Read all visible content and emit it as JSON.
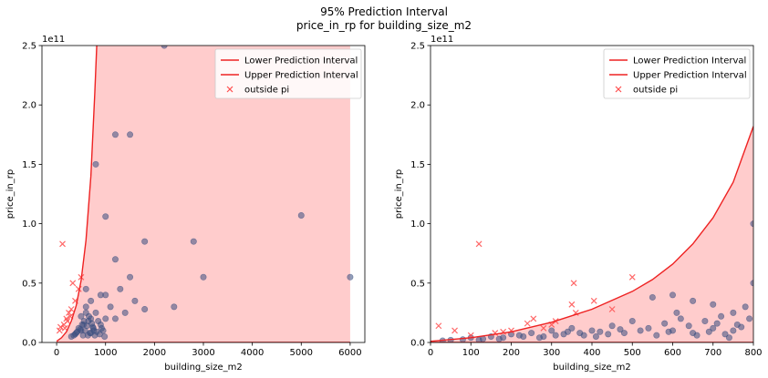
{
  "figure": {
    "title": "95% Prediction Interval",
    "subtitle": "price_in_rp for building_size_m2"
  },
  "colors": {
    "band_fill": "#ffcccc",
    "interval_line": "#ee2222",
    "outside_marker": "#ff4d4d",
    "inside_marker": "#3b4f80"
  },
  "chart_data": [
    {
      "type": "scatter",
      "xlabel": "building_size_m2",
      "ylabel": "price_in_rp",
      "y_scale_label": "1e11",
      "xlim": [
        -300,
        6300
      ],
      "ylim": [
        0,
        250000000000.0
      ],
      "x_ticks": [
        0,
        1000,
        2000,
        3000,
        4000,
        5000,
        6000
      ],
      "x_tick_labels": [
        "0",
        "1000",
        "2000",
        "3000",
        "4000",
        "5000",
        "6000"
      ],
      "y_ticks": [
        0,
        50000000000.0,
        100000000000.0,
        150000000000.0,
        200000000000.0,
        250000000000.0
      ],
      "y_tick_labels": [
        "0.0",
        "0.5",
        "1.0",
        "1.5",
        "2.0",
        "2.5"
      ],
      "grid": false,
      "legend_position": "top-right",
      "legend": [
        "Lower Prediction Interval",
        "Upper Prediction Interval",
        "outside pi"
      ],
      "band_x_range": [
        0,
        6000
      ],
      "upper_interval": {
        "x": [
          0,
          100,
          200,
          300,
          400,
          500,
          600,
          700,
          780,
          820
        ],
        "y": [
          1000000000.0,
          4000000000.0,
          9000000000.0,
          18000000000.0,
          31000000000.0,
          52000000000.0,
          86000000000.0,
          140000000000.0,
          210000000000.0,
          250000000000.0
        ]
      },
      "lower_interval": {
        "x": [
          0,
          6000
        ],
        "y": [
          0,
          0
        ]
      },
      "outside_pi": {
        "x": [
          120,
          330,
          380,
          450,
          500,
          300,
          250,
          200,
          150,
          80,
          60,
          220,
          280,
          170
        ],
        "y": [
          83000000000.0,
          50000000000.0,
          35000000000.0,
          45000000000.0,
          55000000000.0,
          28000000000.0,
          25000000000.0,
          20000000000.0,
          15000000000.0,
          13000000000.0,
          10000000000.0,
          18000000000.0,
          22000000000.0,
          12000000000.0
        ]
      },
      "inside_pi": {
        "x": [
          2200,
          1200,
          1500,
          800,
          1000,
          5000,
          6000,
          1800,
          2800,
          1200,
          600,
          3000,
          1500,
          2400,
          1800,
          1000,
          1300,
          900,
          1100,
          700,
          1400,
          600,
          800,
          500,
          1200,
          1600,
          1000,
          900,
          700,
          650,
          550,
          600,
          750,
          850,
          950,
          500,
          400,
          350,
          450,
          520,
          580,
          620,
          680,
          720,
          760,
          300,
          380,
          420,
          480,
          540,
          560,
          640,
          660,
          700,
          740,
          780,
          820,
          880,
          920,
          980
        ],
        "y": [
          250000000000.0,
          175000000000.0,
          175000000000.0,
          150000000000.0,
          106000000000.0,
          107000000000.0,
          55000000000.0,
          85000000000.0,
          85000000000.0,
          70000000000.0,
          45000000000.0,
          55000000000.0,
          55000000000.0,
          30000000000.0,
          28000000000.0,
          40000000000.0,
          45000000000.0,
          40000000000.0,
          30000000000.0,
          35000000000.0,
          25000000000.0,
          30000000000.0,
          25000000000.0,
          22000000000.0,
          20000000000.0,
          35000000000.0,
          20000000000.0,
          15000000000.0,
          20000000000.0,
          18000000000.0,
          15000000000.0,
          25000000000.0,
          12000000000.0,
          18000000000.0,
          10000000000.0,
          10000000000.0,
          8000000000.0,
          6000000000.0,
          12000000000.0,
          15000000000.0,
          10000000000.0,
          14000000000.0,
          8000000000.0,
          16000000000.0,
          10000000000.0,
          5000000000.0,
          7000000000.0,
          9000000000.0,
          11000000000.0,
          6000000000.0,
          18000000000.0,
          6000000000.0,
          22000000000.0,
          8000000000.0,
          13000000000.0,
          6000000000.0,
          9000000000.0,
          7000000000.0,
          12000000000.0,
          5000000000.0
        ]
      }
    },
    {
      "type": "scatter",
      "xlabel": "building_size_m2",
      "ylabel": "price_in_rp",
      "y_scale_label": "1e11",
      "xlim": [
        0,
        800
      ],
      "ylim": [
        0,
        250000000000.0
      ],
      "x_ticks": [
        0,
        100,
        200,
        300,
        400,
        500,
        600,
        700,
        800
      ],
      "x_tick_labels": [
        "0",
        "100",
        "200",
        "300",
        "400",
        "500",
        "600",
        "700",
        "800"
      ],
      "y_ticks": [
        0,
        50000000000.0,
        100000000000.0,
        150000000000.0,
        200000000000.0,
        250000000000.0
      ],
      "y_tick_labels": [
        "0.0",
        "0.5",
        "1.0",
        "1.5",
        "2.0",
        "2.5"
      ],
      "grid": false,
      "legend_position": "top-right",
      "legend": [
        "Lower Prediction Interval",
        "Upper Prediction Interval",
        "outside pi"
      ],
      "band_x_range": [
        0,
        800
      ],
      "upper_interval": {
        "x": [
          0,
          100,
          200,
          300,
          400,
          500,
          550,
          600,
          650,
          700,
          750,
          800
        ],
        "y": [
          1000000000.0,
          4000000000.0,
          9000000000.0,
          17000000000.0,
          28000000000.0,
          43000000000.0,
          53000000000.0,
          66000000000.0,
          83000000000.0,
          105000000000.0,
          135000000000.0,
          182000000000.0
        ]
      },
      "lower_interval": {
        "x": [
          0,
          800
        ],
        "y": [
          0,
          0
        ]
      },
      "outside_pi": {
        "x": [
          120,
          355,
          500,
          405,
          255,
          350,
          300,
          20,
          60,
          180,
          240,
          160,
          200,
          360,
          280,
          310,
          450,
          100
        ],
        "y": [
          83000000000.0,
          50000000000.0,
          55000000000.0,
          35000000000.0,
          20000000000.0,
          32000000000.0,
          15000000000.0,
          14000000000.0,
          10000000000.0,
          9000000000.0,
          16000000000.0,
          8000000000.0,
          10000000000.0,
          25000000000.0,
          12000000000.0,
          18000000000.0,
          28000000000.0,
          6000000000.0
        ]
      },
      "inside_pi": {
        "x": [
          800,
          800,
          550,
          600,
          650,
          700,
          750,
          780,
          620,
          680,
          720,
          760,
          540,
          580,
          500,
          450,
          400,
          350,
          300,
          250,
          200,
          150,
          100,
          50,
          600,
          650,
          700,
          750,
          560,
          640,
          690,
          730,
          770,
          790,
          480,
          420,
          380,
          330,
          280,
          230,
          180,
          130,
          80,
          30,
          610,
          660,
          710,
          740,
          590,
          520,
          470,
          440,
          410,
          370,
          340,
          310,
          270,
          220,
          170,
          120
        ],
        "y": [
          100000000000.0,
          50000000000.0,
          38000000000.0,
          40000000000.0,
          35000000000.0,
          32000000000.0,
          25000000000.0,
          30000000000.0,
          20000000000.0,
          18000000000.0,
          22000000000.0,
          15000000000.0,
          12000000000.0,
          16000000000.0,
          18000000000.0,
          14000000000.0,
          10000000000.0,
          12000000000.0,
          10000000000.0,
          8000000000.0,
          7000000000.0,
          5000000000.0,
          4000000000.0,
          2000000000.0,
          10000000000.0,
          8000000000.0,
          12000000000.0,
          10000000000.0,
          6000000000.0,
          14000000000.0,
          9000000000.0,
          7000000000.0,
          13000000000.0,
          20000000000.0,
          8000000000.0,
          9000000000.0,
          6000000000.0,
          7000000000.0,
          5000000000.0,
          5000000000.0,
          4000000000.0,
          3000000000.0,
          2500000000.0,
          1500000000.0,
          25000000000.0,
          6000000000.0,
          16000000000.0,
          4000000000.0,
          9000000000.0,
          10000000000.0,
          11000000000.0,
          7000000000.0,
          5000000000.0,
          8000000000.0,
          9000000000.0,
          6000000000.0,
          4000000000.0,
          6000000000.0,
          3000000000.0,
          2000000000.0
        ]
      }
    }
  ]
}
